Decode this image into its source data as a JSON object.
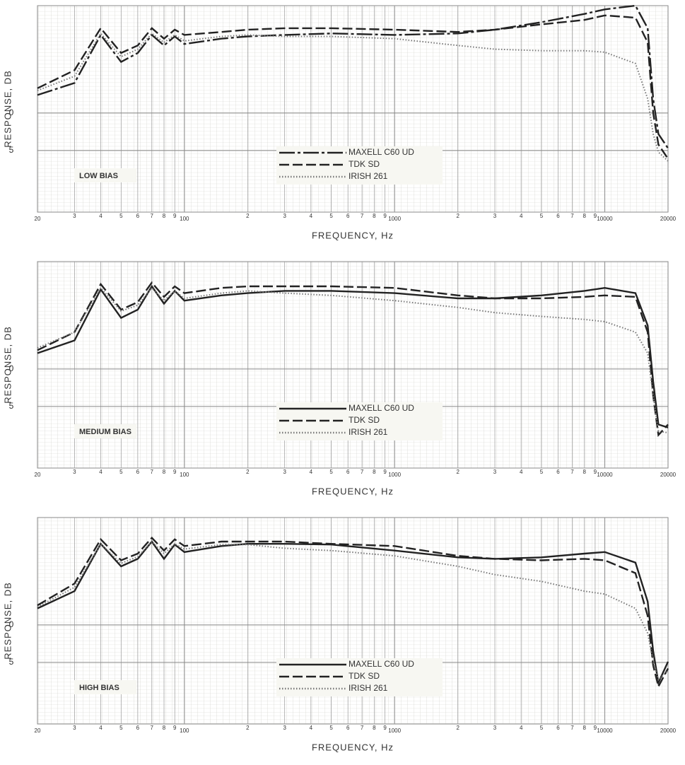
{
  "chart_data": [
    {
      "type": "line",
      "annotation": "LOW BIAS",
      "x_label": "FREQUENCY, Hz",
      "y_label": "RESPONSE, DB",
      "x": [
        20,
        30,
        40,
        50,
        60,
        70,
        80,
        90,
        100,
        150,
        200,
        300,
        500,
        1000,
        2000,
        3000,
        5000,
        8000,
        10000,
        14000,
        16000,
        17000,
        18000,
        20000
      ],
      "xlim": [
        20,
        20000
      ],
      "log_x": true,
      "ylim": [
        -13.2,
        14.3
      ],
      "yticks": [
        0,
        {
          "value": -5,
          "label": "5"
        }
      ],
      "xticks": [
        20,
        {
          "value": 30,
          "label": "3"
        },
        {
          "value": 40,
          "label": "4"
        },
        {
          "value": 50,
          "label": "5"
        },
        {
          "value": 60,
          "label": "6"
        },
        {
          "value": 70,
          "label": "7"
        },
        {
          "value": 80,
          "label": "8"
        },
        {
          "value": 90,
          "label": "9"
        },
        100,
        {
          "value": 200,
          "label": "2"
        },
        {
          "value": 300,
          "label": "3"
        },
        {
          "value": 400,
          "label": "4"
        },
        {
          "value": 500,
          "label": "5"
        },
        {
          "value": 600,
          "label": "6"
        },
        {
          "value": 700,
          "label": "7"
        },
        {
          "value": 800,
          "label": "8"
        },
        {
          "value": 900,
          "label": "9"
        },
        1000,
        {
          "value": 2000,
          "label": "2"
        },
        {
          "value": 3000,
          "label": "3"
        },
        {
          "value": 4000,
          "label": "4"
        },
        {
          "value": 5000,
          "label": "5"
        },
        {
          "value": 6000,
          "label": "6"
        },
        {
          "value": 7000,
          "label": "7"
        },
        {
          "value": 8000,
          "label": "8"
        },
        {
          "value": 9000,
          "label": "9"
        },
        10000,
        20000
      ],
      "grid": true,
      "legend": "lower center",
      "series": [
        {
          "name": "MAXELL C60 UD",
          "color": "#222",
          "style": "dashdot",
          "values": [
            2.4,
            4.0,
            10.4,
            6.8,
            8,
            10.4,
            9,
            10.2,
            9.2,
            9.9,
            10.2,
            10.4,
            10.6,
            10.4,
            10.6,
            11.1,
            12.1,
            13.2,
            13.8,
            14.3,
            11.3,
            1.9,
            -2.8,
            -4.7
          ]
        },
        {
          "name": "TDK SD",
          "color": "#222",
          "style": "dashed",
          "values": [
            3.3,
            5.7,
            11.3,
            8,
            9,
            11.3,
            9.9,
            11.1,
            10.4,
            10.8,
            11.1,
            11.3,
            11.3,
            11.1,
            10.8,
            11.1,
            11.8,
            12.4,
            13,
            12.7,
            9.4,
            0,
            -4.2,
            -6.1
          ]
        },
        {
          "name": "IRISH 261",
          "color": "#777",
          "style": "dotted",
          "values": [
            3,
            4.9,
            10.6,
            7.5,
            8.5,
            10.6,
            9.4,
            10.4,
            9.6,
            10.2,
            10.4,
            10.2,
            10.2,
            9.9,
            9,
            8.5,
            8.3,
            8.3,
            8.1,
            6.6,
            1.9,
            -2.8,
            -5.2,
            -6.4
          ]
        }
      ]
    },
    {
      "type": "line",
      "annotation": "MEDIUM BIAS",
      "x_label": "FREQUENCY, Hz",
      "y_label": "RESPONSE, DB",
      "x": [
        20,
        30,
        40,
        50,
        60,
        70,
        80,
        90,
        100,
        150,
        200,
        300,
        500,
        1000,
        2000,
        3000,
        5000,
        8000,
        10000,
        14000,
        16000,
        17000,
        18000,
        20000
      ],
      "xlim": [
        20,
        20000
      ],
      "log_x": true,
      "ylim": [
        -13.2,
        14.3
      ],
      "yticks": [
        0,
        {
          "value": -5,
          "label": "5"
        }
      ],
      "xticks": [
        20,
        {
          "value": 30,
          "label": "3"
        },
        {
          "value": 40,
          "label": "4"
        },
        {
          "value": 50,
          "label": "5"
        },
        {
          "value": 60,
          "label": "6"
        },
        {
          "value": 70,
          "label": "7"
        },
        {
          "value": 80,
          "label": "8"
        },
        {
          "value": 90,
          "label": "9"
        },
        100,
        {
          "value": 200,
          "label": "2"
        },
        {
          "value": 300,
          "label": "3"
        },
        {
          "value": 400,
          "label": "4"
        },
        {
          "value": 500,
          "label": "5"
        },
        {
          "value": 600,
          "label": "6"
        },
        {
          "value": 700,
          "label": "7"
        },
        {
          "value": 800,
          "label": "8"
        },
        {
          "value": 900,
          "label": "9"
        },
        1000,
        {
          "value": 2000,
          "label": "2"
        },
        {
          "value": 3000,
          "label": "3"
        },
        {
          "value": 4000,
          "label": "4"
        },
        {
          "value": 5000,
          "label": "5"
        },
        {
          "value": 6000,
          "label": "6"
        },
        {
          "value": 7000,
          "label": "7"
        },
        {
          "value": 8000,
          "label": "8"
        },
        {
          "value": 9000,
          "label": "9"
        },
        10000,
        20000
      ],
      "grid": true,
      "legend": "lower center",
      "series": [
        {
          "name": "MAXELL C60 UD",
          "color": "#222",
          "style": "solid",
          "values": [
            2.1,
            3.8,
            10.6,
            6.8,
            7.9,
            11,
            8.7,
            10.4,
            9.1,
            9.8,
            10.1,
            10.4,
            10.4,
            10.1,
            9.4,
            9.4,
            9.8,
            10.4,
            10.8,
            10.1,
            5.8,
            -1.7,
            -7.4,
            -7.8
          ]
        },
        {
          "name": "TDK SD",
          "color": "#222",
          "style": "dashed",
          "values": [
            2.5,
            4.9,
            11.3,
            7.9,
            8.9,
            11.5,
            9.6,
            11,
            10.1,
            10.8,
            11,
            11,
            11,
            10.8,
            9.8,
            9.4,
            9.4,
            9.6,
            9.8,
            9.6,
            4.9,
            -3.6,
            -8.8,
            -7.4
          ]
        },
        {
          "name": "IRISH 261",
          "color": "#777",
          "style": "dotted",
          "values": [
            2.8,
            4.9,
            10.8,
            7.7,
            8.5,
            10.8,
            9.1,
            10.4,
            9.4,
            10.1,
            10.4,
            10.1,
            9.8,
            9.1,
            8.2,
            7.5,
            7,
            6.6,
            6.3,
            4.9,
            2.1,
            -3.6,
            -8.3,
            -8.5
          ]
        }
      ]
    },
    {
      "type": "line",
      "annotation": "HIGH BIAS",
      "x_label": "FREQUENCY, Hz",
      "y_label": "RESPONSE, DB",
      "x": [
        20,
        30,
        40,
        50,
        60,
        70,
        80,
        90,
        100,
        150,
        200,
        300,
        500,
        1000,
        2000,
        3000,
        5000,
        8000,
        10000,
        14000,
        16000,
        17000,
        18000,
        20000
      ],
      "xlim": [
        20,
        20000
      ],
      "log_x": true,
      "ylim": [
        -13.2,
        14.3
      ],
      "yticks": [
        0,
        {
          "value": -5,
          "label": "5"
        }
      ],
      "xticks": [
        20,
        {
          "value": 30,
          "label": "3"
        },
        {
          "value": 40,
          "label": "4"
        },
        {
          "value": 50,
          "label": "5"
        },
        {
          "value": 60,
          "label": "6"
        },
        {
          "value": 70,
          "label": "7"
        },
        {
          "value": 80,
          "label": "8"
        },
        {
          "value": 90,
          "label": "9"
        },
        100,
        {
          "value": 200,
          "label": "2"
        },
        {
          "value": 300,
          "label": "3"
        },
        {
          "value": 400,
          "label": "4"
        },
        {
          "value": 500,
          "label": "5"
        },
        {
          "value": 600,
          "label": "6"
        },
        {
          "value": 700,
          "label": "7"
        },
        {
          "value": 800,
          "label": "8"
        },
        {
          "value": 900,
          "label": "9"
        },
        1000,
        {
          "value": 2000,
          "label": "2"
        },
        {
          "value": 3000,
          "label": "3"
        },
        {
          "value": 4000,
          "label": "4"
        },
        {
          "value": 5000,
          "label": "5"
        },
        {
          "value": 6000,
          "label": "6"
        },
        {
          "value": 7000,
          "label": "7"
        },
        {
          "value": 8000,
          "label": "8"
        },
        {
          "value": 9000,
          "label": "9"
        },
        10000,
        20000
      ],
      "grid": true,
      "legend": "lower center",
      "series": [
        {
          "name": "MAXELL C60 UD",
          "color": "#222",
          "style": "solid",
          "values": [
            2.2,
            4.5,
            10.8,
            7.8,
            8.8,
            11.1,
            8.8,
            10.7,
            9.7,
            10.5,
            10.8,
            10.8,
            10.7,
            9.9,
            9,
            8.8,
            9,
            9.5,
            9.7,
            8.3,
            3.1,
            -3.5,
            -7.7,
            -4.9
          ]
        },
        {
          "name": "TDK SD",
          "color": "#222",
          "style": "dashed",
          "values": [
            2.6,
            5.5,
            11.4,
            8.6,
            9.5,
            11.6,
            9.9,
            11.4,
            10.5,
            11.1,
            11.1,
            11.1,
            10.8,
            10.5,
            9.2,
            8.8,
            8.6,
            8.8,
            8.6,
            6.9,
            1.2,
            -5.4,
            -8.2,
            -5.8
          ]
        },
        {
          "name": "IRISH 261",
          "color": "#777",
          "style": "dotted",
          "values": [
            2.4,
            5,
            10.8,
            8.2,
            9.1,
            11.1,
            9.5,
            10.8,
            10.1,
            10.7,
            10.7,
            10.2,
            9.9,
            9.2,
            7.8,
            6.7,
            5.8,
            4.5,
            4.1,
            2.2,
            -1.1,
            -4.9,
            -7.3,
            -6.1
          ]
        }
      ]
    }
  ]
}
